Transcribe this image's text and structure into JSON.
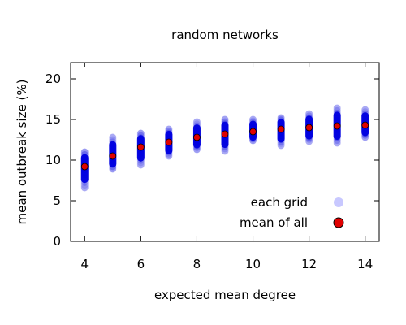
{
  "chart_data": {
    "type": "scatter",
    "title": "random networks",
    "xlabel": "expected mean degree",
    "ylabel": "mean outbreak size (%)",
    "xlim": [
      3.5,
      14.5
    ],
    "ylim": [
      0,
      22
    ],
    "xticks": [
      4,
      6,
      8,
      10,
      12,
      14
    ],
    "yticks": [
      0,
      5,
      10,
      15,
      20
    ],
    "grid": false,
    "legend_position": "bottom-right",
    "colors": {
      "each_grid": "#0000e0",
      "each_grid_legend": "#c8c8ff",
      "mean_of_all": "#e00000"
    },
    "series": [
      {
        "name": "each grid",
        "x": [
          4,
          5,
          6,
          7,
          8,
          9,
          10,
          11,
          12,
          13,
          14
        ],
        "y_min": [
          6.6,
          8.9,
          9.4,
          10.5,
          11.3,
          11.1,
          12.4,
          11.8,
          12.3,
          12.1,
          12.8
        ],
        "y_max": [
          11.0,
          12.8,
          13.3,
          13.8,
          14.7,
          15.0,
          15.0,
          15.2,
          15.7,
          16.4,
          16.2
        ]
      },
      {
        "name": "mean of all",
        "x": [
          4,
          5,
          6,
          7,
          8,
          9,
          10,
          11,
          12,
          13,
          14
        ],
        "y": [
          9.2,
          10.5,
          11.6,
          12.2,
          12.8,
          13.2,
          13.5,
          13.8,
          14.0,
          14.2,
          14.3
        ]
      }
    ]
  }
}
